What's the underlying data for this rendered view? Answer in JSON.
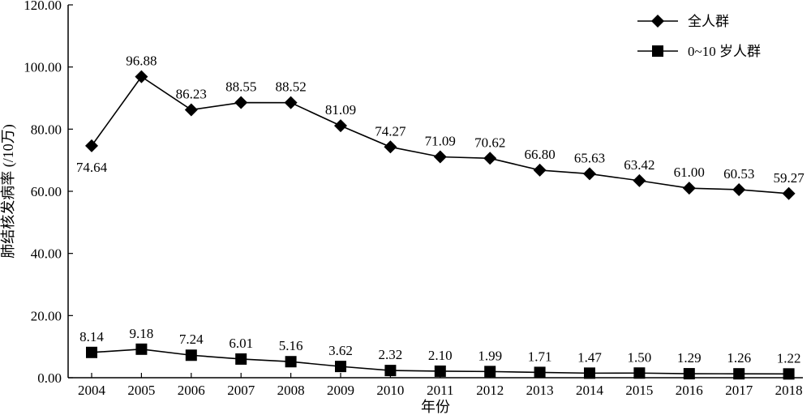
{
  "chart_data": {
    "type": "line",
    "title": "",
    "xlabel": "年份",
    "ylabel": "肺结核发病率 (/10万)",
    "ylim": [
      0,
      120
    ],
    "yticks": [
      "0.00",
      "20.00",
      "40.00",
      "60.00",
      "80.00",
      "100.00",
      "120.00"
    ],
    "grid": false,
    "legend_position": "top-right",
    "categories": [
      "2004",
      "2005",
      "2006",
      "2007",
      "2008",
      "2009",
      "2010",
      "2011",
      "2012",
      "2013",
      "2014",
      "2015",
      "2016",
      "2017",
      "2018"
    ],
    "series": [
      {
        "name": "全人群",
        "marker": "diamond",
        "color": "#000000",
        "values": [
          74.64,
          96.88,
          86.23,
          88.55,
          88.52,
          81.09,
          74.27,
          71.09,
          70.62,
          66.8,
          65.63,
          63.42,
          61.0,
          60.53,
          59.27
        ],
        "labels": [
          "74.64",
          "96.88",
          "86.23",
          "88.55",
          "88.52",
          "81.09",
          "74.27",
          "71.09",
          "70.62",
          "66.80",
          "65.63",
          "63.42",
          "61.00",
          "60.53",
          "59.27"
        ]
      },
      {
        "name": "0~10 岁人群",
        "marker": "square",
        "color": "#000000",
        "values": [
          8.14,
          9.18,
          7.24,
          6.01,
          5.16,
          3.62,
          2.32,
          2.1,
          1.99,
          1.71,
          1.47,
          1.5,
          1.29,
          1.26,
          1.22
        ],
        "labels": [
          "8.14",
          "9.18",
          "7.24",
          "6.01",
          "5.16",
          "3.62",
          "2.32",
          "2.10",
          "1.99",
          "1.71",
          "1.47",
          "1.50",
          "1.29",
          "1.26",
          "1.22"
        ]
      }
    ]
  }
}
